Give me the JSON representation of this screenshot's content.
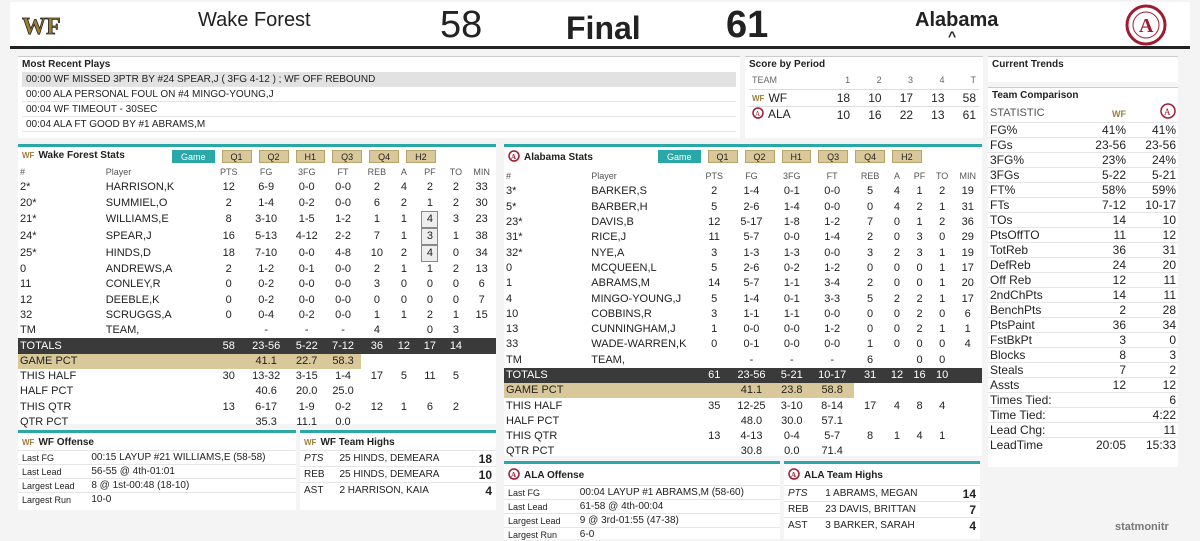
{
  "header": {
    "home_name": "Wake Forest",
    "home_score": "58",
    "status": "Final",
    "away_score": "61",
    "away_name": "Alabama"
  },
  "recent": {
    "title": "Most Recent Plays",
    "plays": [
      "00:00 WF MISSED 3PTR BY #24 SPEAR,J ( 3FG 4-12 ) ; WF OFF REBOUND",
      "00:00 ALA PERSONAL FOUL ON #4 MINGO-YOUNG,J",
      "00:04 WF TIMEOUT - 30SEC",
      "00:04 ALA FT GOOD BY #1 ABRAMS,M"
    ]
  },
  "score_by_period": {
    "title": "Score by Period",
    "headers": [
      "TEAM",
      "1",
      "2",
      "3",
      "4",
      "T"
    ],
    "rows": [
      {
        "team": "WF",
        "vals": [
          "18",
          "10",
          "17",
          "13",
          "58"
        ]
      },
      {
        "team": "ALA",
        "vals": [
          "10",
          "16",
          "22",
          "13",
          "61"
        ]
      }
    ]
  },
  "trends": {
    "title": "Current Trends"
  },
  "comparison": {
    "title": "Team Comparison",
    "stat_header": "STATISTIC",
    "rows": [
      [
        "FG%",
        "41%",
        "41%"
      ],
      [
        "FGs",
        "23-56",
        "23-56"
      ],
      [
        "3FG%",
        "23%",
        "24%"
      ],
      [
        "3FGs",
        "5-22",
        "5-21"
      ],
      [
        "FT%",
        "58%",
        "59%"
      ],
      [
        "FTs",
        "7-12",
        "10-17"
      ],
      [
        "TOs",
        "14",
        "10"
      ],
      [
        "PtsOffTO",
        "11",
        "12"
      ],
      [
        "TotReb",
        "36",
        "31"
      ],
      [
        "DefReb",
        "24",
        "20"
      ],
      [
        "Off Reb",
        "12",
        "11"
      ],
      [
        "2ndChPts",
        "14",
        "11"
      ],
      [
        "BenchPts",
        "2",
        "28"
      ],
      [
        "PtsPaint",
        "36",
        "34"
      ],
      [
        "FstBkPt",
        "3",
        "0"
      ],
      [
        "Blocks",
        "8",
        "3"
      ],
      [
        "Steals",
        "7",
        "2"
      ],
      [
        "Assts",
        "12",
        "12"
      ],
      [
        "Times Tied:",
        "",
        "6"
      ],
      [
        "Time Tied:",
        "",
        "4:22"
      ],
      [
        "Lead Chg:",
        "",
        "11"
      ],
      [
        "LeadTime",
        "20:05",
        "15:33"
      ]
    ]
  },
  "tabs": [
    "Game",
    "Q1",
    "Q2",
    "H1",
    "Q3",
    "Q4",
    "H2"
  ],
  "stat_headers": [
    "#",
    "Player",
    "PTS",
    "FG",
    "3FG",
    "FT",
    "REB",
    "A",
    "PF",
    "TO",
    "MIN"
  ],
  "wf_stats": {
    "title": "Wake Forest Stats",
    "players": [
      [
        "2*",
        "HARRISON,K",
        "12",
        "6-9",
        "0-0",
        "0-0",
        "2",
        "4",
        "2",
        "2",
        "33"
      ],
      [
        "20*",
        "SUMMIEL,O",
        "2",
        "1-4",
        "0-2",
        "0-0",
        "6",
        "2",
        "1",
        "2",
        "30"
      ],
      [
        "21*",
        "WILLIAMS,E",
        "8",
        "3-10",
        "1-5",
        "1-2",
        "1",
        "1",
        "4",
        "3",
        "23"
      ],
      [
        "24*",
        "SPEAR,J",
        "16",
        "5-13",
        "4-12",
        "2-2",
        "7",
        "1",
        "3",
        "1",
        "38"
      ],
      [
        "25*",
        "HINDS,D",
        "18",
        "7-10",
        "0-0",
        "4-8",
        "10",
        "2",
        "4",
        "0",
        "34"
      ],
      [
        "0",
        "ANDREWS,A",
        "2",
        "1-2",
        "0-1",
        "0-0",
        "2",
        "1",
        "1",
        "2",
        "13"
      ],
      [
        "11",
        "CONLEY,R",
        "0",
        "0-2",
        "0-0",
        "0-0",
        "3",
        "0",
        "0",
        "0",
        "6"
      ],
      [
        "12",
        "DEEBLE,K",
        "0",
        "0-2",
        "0-0",
        "0-0",
        "0",
        "0",
        "0",
        "0",
        "7"
      ],
      [
        "32",
        "SCRUGGS,A",
        "0",
        "0-4",
        "0-2",
        "0-0",
        "1",
        "1",
        "2",
        "1",
        "15"
      ],
      [
        "TM",
        "TEAM,",
        "",
        "-",
        "-",
        "-",
        "4",
        "",
        "0",
        "3",
        ""
      ]
    ],
    "totals": [
      "TOTALS",
      "",
      "58",
      "23-56",
      "5-22",
      "7-12",
      "36",
      "12",
      "17",
      "14",
      ""
    ],
    "game_pct": [
      "GAME PCT",
      "",
      "",
      "41.1",
      "22.7",
      "58.3"
    ],
    "this_half": [
      "THIS HALF",
      "",
      "30",
      "13-32",
      "3-15",
      "1-4",
      "17",
      "5",
      "11",
      "5",
      ""
    ],
    "half_pct": [
      "HALF PCT",
      "",
      "",
      "40.6",
      "20.0",
      "25.0"
    ],
    "this_qtr": [
      "THIS QTR",
      "",
      "13",
      "6-17",
      "1-9",
      "0-2",
      "12",
      "1",
      "6",
      "2",
      ""
    ],
    "qtr_pct": [
      "QTR PCT",
      "",
      "",
      "35.3",
      "11.1",
      "0.0"
    ]
  },
  "ala_stats": {
    "title": "Alabama Stats",
    "players": [
      [
        "3*",
        "BARKER,S",
        "2",
        "1-4",
        "0-1",
        "0-0",
        "5",
        "4",
        "1",
        "2",
        "19"
      ],
      [
        "5*",
        "BARBER,H",
        "5",
        "2-6",
        "1-4",
        "0-0",
        "0",
        "4",
        "2",
        "1",
        "31"
      ],
      [
        "23*",
        "DAVIS,B",
        "12",
        "5-17",
        "1-8",
        "1-2",
        "7",
        "0",
        "1",
        "2",
        "36"
      ],
      [
        "31*",
        "RICE,J",
        "11",
        "5-7",
        "0-0",
        "1-4",
        "2",
        "0",
        "3",
        "0",
        "29"
      ],
      [
        "32*",
        "NYE,A",
        "3",
        "1-3",
        "1-3",
        "0-0",
        "3",
        "2",
        "3",
        "1",
        "19"
      ],
      [
        "0",
        "MCQUEEN,L",
        "5",
        "2-6",
        "0-2",
        "1-2",
        "0",
        "0",
        "0",
        "1",
        "17"
      ],
      [
        "1",
        "ABRAMS,M",
        "14",
        "5-7",
        "1-1",
        "3-4",
        "2",
        "0",
        "0",
        "1",
        "20"
      ],
      [
        "4",
        "MINGO-YOUNG,J",
        "5",
        "1-4",
        "0-1",
        "3-3",
        "5",
        "2",
        "2",
        "1",
        "17"
      ],
      [
        "10",
        "COBBINS,R",
        "3",
        "1-1",
        "1-1",
        "0-0",
        "0",
        "0",
        "2",
        "0",
        "6"
      ],
      [
        "13",
        "CUNNINGHAM,J",
        "1",
        "0-0",
        "0-0",
        "1-2",
        "0",
        "0",
        "2",
        "1",
        "1"
      ],
      [
        "33",
        "WADE-WARREN,K",
        "0",
        "0-1",
        "0-0",
        "0-0",
        "1",
        "0",
        "0",
        "0",
        "4"
      ],
      [
        "TM",
        "TEAM,",
        "",
        "-",
        "-",
        "-",
        "6",
        "",
        "0",
        "0",
        ""
      ]
    ],
    "totals": [
      "TOTALS",
      "",
      "61",
      "23-56",
      "5-21",
      "10-17",
      "31",
      "12",
      "16",
      "10",
      ""
    ],
    "game_pct": [
      "GAME PCT",
      "",
      "",
      "41.1",
      "23.8",
      "58.8"
    ],
    "this_half": [
      "THIS HALF",
      "",
      "35",
      "12-25",
      "3-10",
      "8-14",
      "17",
      "4",
      "8",
      "4",
      ""
    ],
    "half_pct": [
      "HALF PCT",
      "",
      "",
      "48.0",
      "30.0",
      "57.1"
    ],
    "this_qtr": [
      "THIS QTR",
      "",
      "13",
      "4-13",
      "0-4",
      "5-7",
      "8",
      "1",
      "4",
      "1",
      ""
    ],
    "qtr_pct": [
      "QTR PCT",
      "",
      "",
      "30.8",
      "0.0",
      "71.4"
    ]
  },
  "wf_offense": {
    "title": "WF Offense",
    "rows": [
      [
        "Last FG",
        "00:15 LAYUP #21 WILLIAMS,E (58-58)"
      ],
      [
        "Last Lead",
        "56-55 @ 4th-01:01"
      ],
      [
        "Largest Lead",
        "8 @ 1st-00:48 (18-10)"
      ],
      [
        "Largest Run",
        "10-0"
      ]
    ]
  },
  "wf_highs": {
    "title": "WF Team Highs",
    "rows": [
      [
        "PTS",
        "25 HINDS, DEMEARA",
        "18"
      ],
      [
        "REB",
        "25 HINDS, DEMEARA",
        "10"
      ],
      [
        "AST",
        "2 HARRISON, KAIA",
        "4"
      ]
    ]
  },
  "ala_offense": {
    "title": "ALA Offense",
    "rows": [
      [
        "Last FG",
        "00:04 LAYUP #1 ABRAMS,M (58-60)"
      ],
      [
        "Last Lead",
        "61-58 @ 4th-00:04"
      ],
      [
        "Largest Lead",
        "9 @ 3rd-01:55 (47-38)"
      ],
      [
        "Largest Run",
        "6-0"
      ]
    ]
  },
  "ala_highs": {
    "title": "ALA Team Highs",
    "rows": [
      [
        "PTS",
        "1 ABRAMS, MEGAN",
        "14"
      ],
      [
        "REB",
        "23 DAVIS, BRITTAN",
        "7"
      ],
      [
        "AST",
        "3 BARKER, SARAH",
        "4"
      ]
    ]
  },
  "brand": "statmonitr",
  "colors": {
    "accent": "#2aa8a8",
    "tab": "#d8c89a",
    "totals": "#3a3a3a",
    "alabama": "#9e1b32"
  }
}
